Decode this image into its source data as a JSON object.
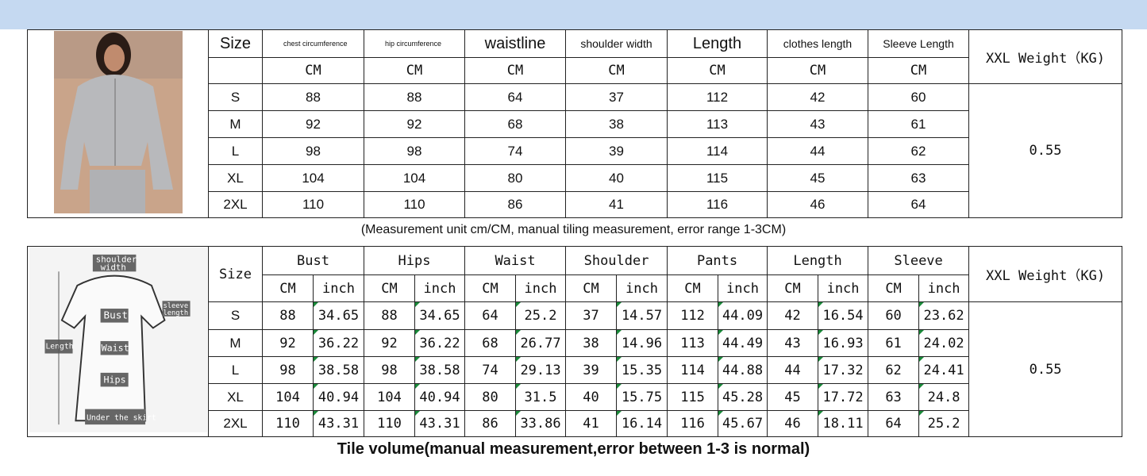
{
  "table1": {
    "headers": [
      "Size",
      "chest circumference",
      "hip circumference",
      "waistline",
      "shoulder width",
      "Length",
      "clothes length",
      "Sleeve Length"
    ],
    "weight_header": "XXL Weight（KG)",
    "units": [
      "CM",
      "CM",
      "CM",
      "CM",
      "CM",
      "CM",
      "CM"
    ],
    "rows": [
      [
        "S",
        "88",
        "88",
        "64",
        "37",
        "112",
        "42",
        "60"
      ],
      [
        "M",
        "92",
        "92",
        "68",
        "38",
        "113",
        "43",
        "61"
      ],
      [
        "L",
        "98",
        "98",
        "74",
        "39",
        "114",
        "44",
        "62"
      ],
      [
        "XL",
        "104",
        "104",
        "80",
        "40",
        "115",
        "45",
        "63"
      ],
      [
        "2XL",
        "110",
        "110",
        "86",
        "41",
        "116",
        "46",
        "64"
      ]
    ],
    "weight": "0.55"
  },
  "caption1": "(Measurement unit cm/CM, manual tiling measurement, error range 1-3CM)",
  "table2": {
    "headers": [
      "Size",
      "Bust",
      "Hips",
      "Waist",
      "Shoulder",
      "Pants",
      "Length",
      "Sleeve"
    ],
    "weight_header": "XXL Weight（KG)",
    "units": [
      "CM",
      "inch"
    ],
    "rows": [
      [
        "S",
        "88",
        "34.65",
        "88",
        "34.65",
        "64",
        "25.2",
        "37",
        "14.57",
        "112",
        "44.09",
        "42",
        "16.54",
        "60",
        "23.62"
      ],
      [
        "M",
        "92",
        "36.22",
        "92",
        "36.22",
        "68",
        "26.77",
        "38",
        "14.96",
        "113",
        "44.49",
        "43",
        "16.93",
        "61",
        "24.02"
      ],
      [
        "L",
        "98",
        "38.58",
        "98",
        "38.58",
        "74",
        "29.13",
        "39",
        "15.35",
        "114",
        "44.88",
        "44",
        "17.32",
        "62",
        "24.41"
      ],
      [
        "XL",
        "104",
        "40.94",
        "104",
        "40.94",
        "80",
        "31.5",
        "40",
        "15.75",
        "115",
        "45.28",
        "45",
        "17.72",
        "63",
        "24.8"
      ],
      [
        "2XL",
        "110",
        "43.31",
        "110",
        "43.31",
        "86",
        "33.86",
        "41",
        "16.14",
        "116",
        "45.67",
        "46",
        "18.11",
        "64",
        "25.2"
      ]
    ],
    "weight": "0.55"
  },
  "diagram_labels": [
    "shoulder width",
    "sleeve length",
    "Bust",
    "Length",
    "Waist",
    "Hips",
    "Under the skirt"
  ],
  "caption2": "Tile volume(manual measurement,error between 1-3 is normal)",
  "colors": {
    "band": "#c5d9f1",
    "marker": "#1a8a3a"
  }
}
